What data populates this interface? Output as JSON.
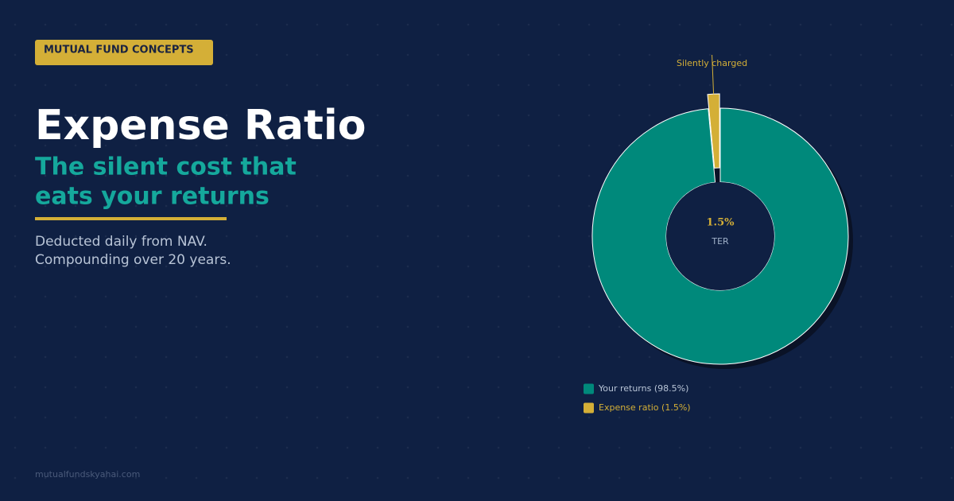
{
  "header": {
    "badge": "MUTUAL FUND CONCEPTS",
    "title": "Expense Ratio",
    "subtitle_lines": [
      "The silent cost that",
      "eats your returns"
    ],
    "description_lines": [
      "Deducted daily from NAV.",
      "Compounding over 20 years."
    ],
    "footer": "mutualfundskyahai.com"
  },
  "chart_data": {
    "type": "donut",
    "categories": [
      "Your returns (98.5%)",
      "Expense ratio (1.5%)"
    ],
    "values": [
      98.5,
      1.5
    ],
    "colors": [
      "#00897b",
      "#d4af37"
    ],
    "center_label": "1.5%",
    "center_caption": "TER",
    "annotation": "Silently charged"
  }
}
